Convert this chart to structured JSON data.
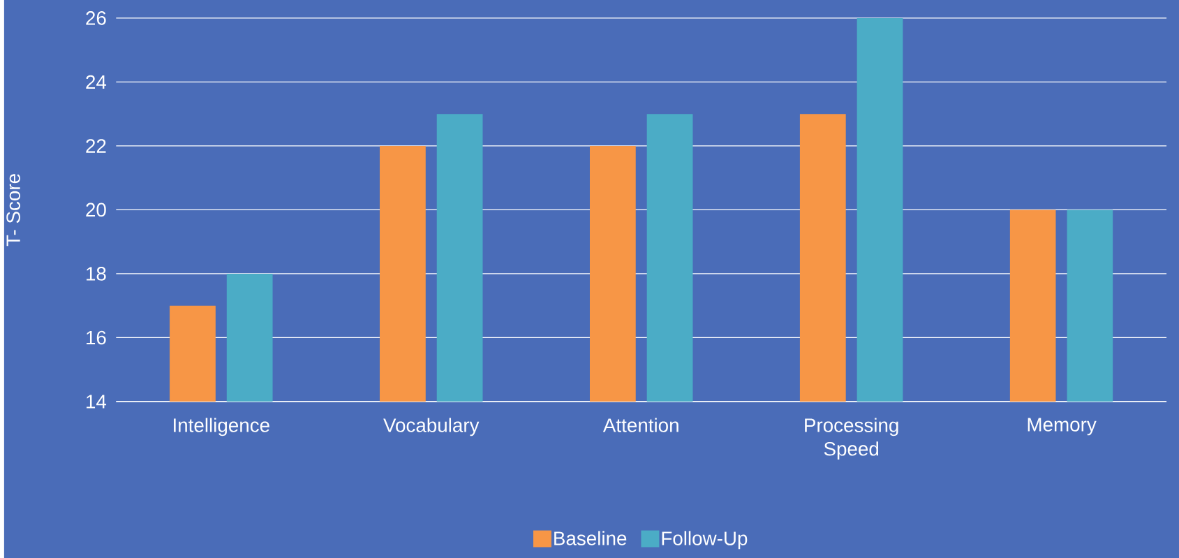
{
  "chart_data": {
    "type": "bar",
    "ylabel": "T- Score",
    "categories": [
      "Intelligence",
      "Vocabulary",
      "Attention",
      "Processing Speed",
      "Memory"
    ],
    "series": [
      {
        "name": "Baseline",
        "color": "#f79646",
        "values": [
          17,
          22,
          22,
          23,
          20
        ]
      },
      {
        "name": "Follow-Up",
        "color": "#4bacc6",
        "values": [
          18,
          23,
          23,
          26,
          20
        ]
      }
    ],
    "ylim": [
      14,
      26
    ],
    "yticks": [
      14,
      16,
      18,
      20,
      22,
      24,
      26
    ],
    "grid": "y",
    "legend": "bottom"
  }
}
